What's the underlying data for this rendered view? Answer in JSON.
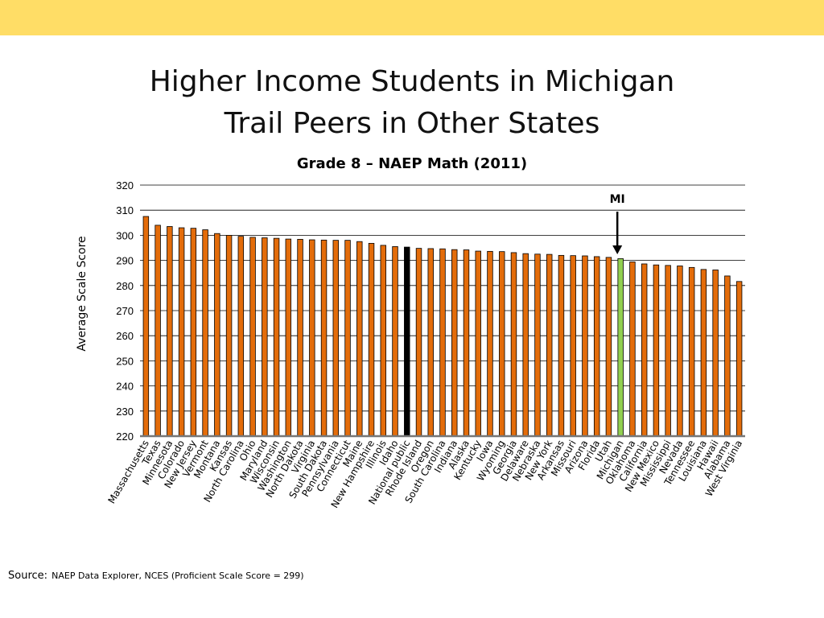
{
  "slide": {
    "title_line1": "Higher Income Students in Michigan",
    "title_line2": "Trail Peers in Other States",
    "source_label": "Source:",
    "source_text": "NAEP Data Explorer, NCES (Proficient Scale Score = 299)"
  },
  "colors": {
    "band": "#FFDD66",
    "bar": "#E36C0A",
    "highlight_national": "#000000",
    "highlight_michigan": "#92D050"
  },
  "chart_data": {
    "type": "bar",
    "title": "Grade 8 – NAEP Math (2011)",
    "xlabel": "",
    "ylabel": "Average Scale Score",
    "ylim": [
      220,
      320
    ],
    "yticks": [
      220,
      230,
      240,
      250,
      260,
      270,
      280,
      290,
      300,
      310,
      320
    ],
    "grid": true,
    "annotation": {
      "text": "MI",
      "target": "Michigan"
    },
    "highlights": {
      "National public": "national",
      "Michigan": "michigan"
    },
    "categories": [
      "Massachusetts",
      "Texas",
      "Minnesota",
      "Colorado",
      "New Jersey",
      "Vermont",
      "Montana",
      "Kansas",
      "North Carolina",
      "Ohio",
      "Maryland",
      "Wisconsin",
      "Washington",
      "North Dakota",
      "Virginia",
      "South Dakota",
      "Pennsylvania",
      "Connecticut",
      "Maine",
      "New Hampshire",
      "Illinois",
      "Idaho",
      "National public",
      "Rhode Island",
      "Oregon",
      "South Carolina",
      "Indiana",
      "Alaska",
      "Kentucky",
      "Iowa",
      "Wyoming",
      "Georgia",
      "Delaware",
      "Nebraska",
      "New York",
      "Arkansas",
      "Missouri",
      "Arizona",
      "Florida",
      "Utah",
      "Michigan",
      "Oklahoma",
      "California",
      "New Mexico",
      "Mississippi",
      "Nevada",
      "Tennessee",
      "Louisiana",
      "Hawaii",
      "Alabama",
      "West Virginia"
    ],
    "values": [
      307.5,
      304,
      303.5,
      303,
      302.8,
      302.2,
      300.7,
      300,
      299.6,
      299.2,
      299,
      298.8,
      298.5,
      298.4,
      298.2,
      298.1,
      298,
      298,
      297.5,
      296.8,
      296,
      295.5,
      295.3,
      294.8,
      294.7,
      294.6,
      294.3,
      294.2,
      293.7,
      293.6,
      293.5,
      293.1,
      292.7,
      292.5,
      292.4,
      292,
      291.9,
      291.8,
      291.5,
      291.2,
      290.7,
      289.4,
      288.6,
      288.2,
      288,
      287.8,
      287.2,
      286.4,
      286.2,
      283.8,
      281.6
    ]
  }
}
